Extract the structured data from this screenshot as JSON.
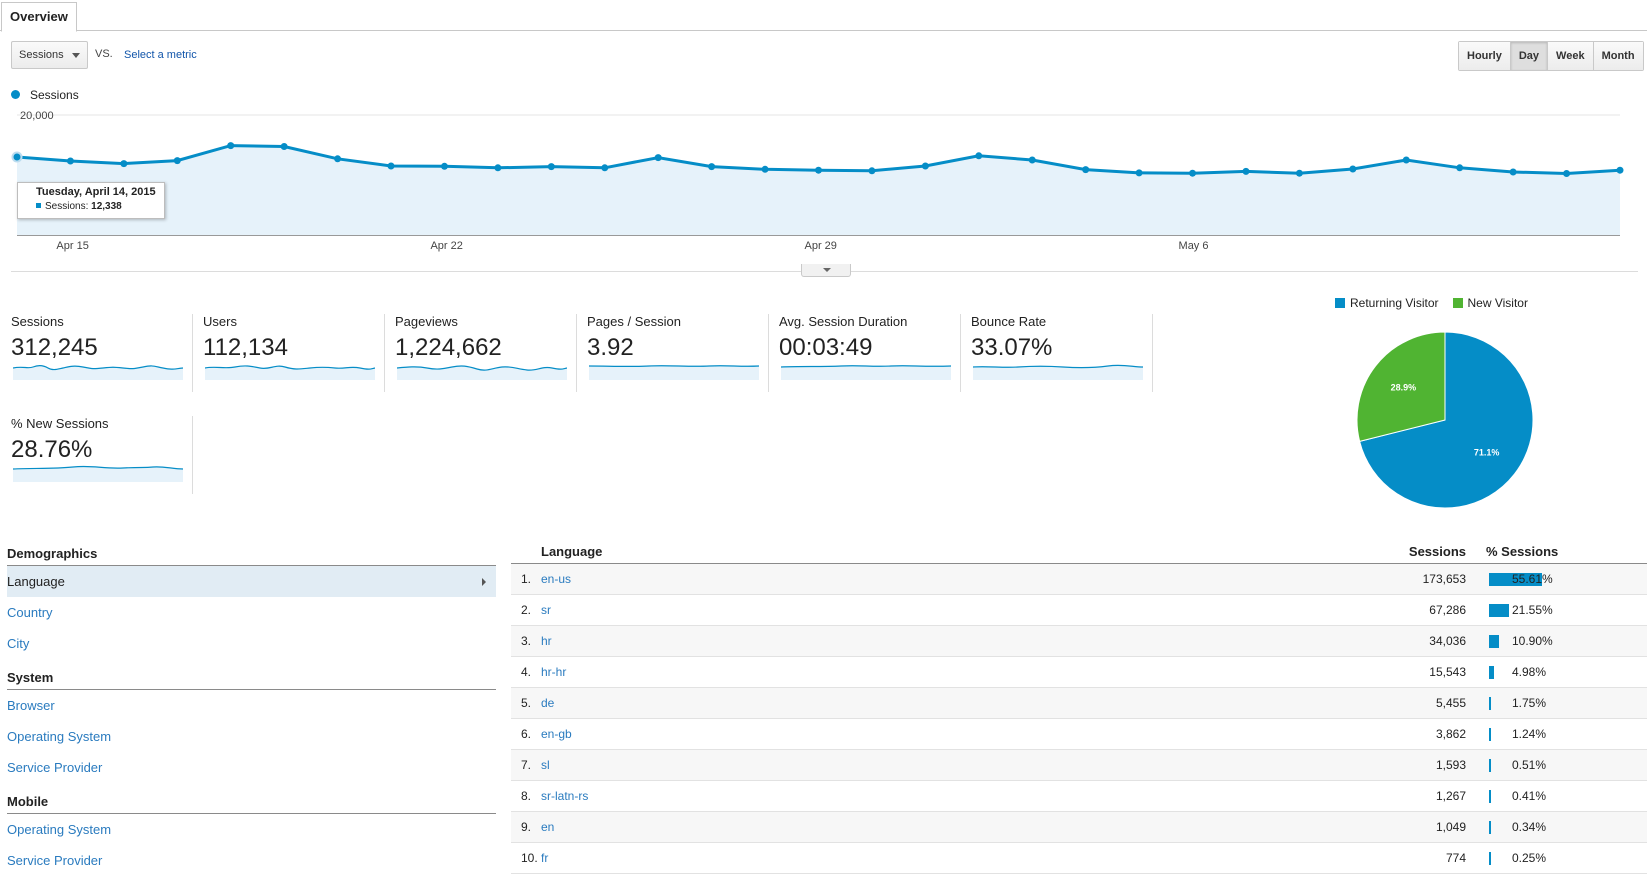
{
  "tab": {
    "label": "Overview"
  },
  "controls": {
    "metric": "Sessions",
    "vs": "VS.",
    "select_metric": "Select a metric",
    "time_buttons": [
      "Hourly",
      "Day",
      "Week",
      "Month"
    ],
    "active_time": "Day"
  },
  "colors": {
    "series": "#058dc7",
    "returning": "#058dc7",
    "new": "#50b432",
    "fill": "#e6f2fa"
  },
  "chart_data": {
    "type": "area",
    "series": [
      {
        "name": "Sessions",
        "values": [
          13000,
          12338,
          11900,
          12400,
          14900,
          14750,
          12700,
          11500,
          11450,
          11200,
          11400,
          11200,
          12900,
          11400,
          10950,
          10800,
          10700,
          11500,
          13200,
          12500,
          10900,
          10350,
          10300,
          10600,
          10300,
          11000,
          12500,
          11200,
          10500,
          10250,
          10800
        ]
      }
    ],
    "x_tick_labels": [
      "Apr 15",
      "Apr 22",
      "Apr 29",
      "May 6"
    ],
    "y_tick_labels": [
      "20,000"
    ],
    "ylim": [
      0,
      20000
    ],
    "legend": "Sessions"
  },
  "tooltip": {
    "title": "Tuesday, April 14, 2015",
    "label": "Sessions:",
    "value": "12,338"
  },
  "scorecards": [
    {
      "label": "Sessions",
      "value": "312,245"
    },
    {
      "label": "Users",
      "value": "112,134"
    },
    {
      "label": "Pageviews",
      "value": "1,224,662"
    },
    {
      "label": "Pages / Session",
      "value": "3.92"
    },
    {
      "label": "Avg. Session Duration",
      "value": "00:03:49"
    },
    {
      "label": "Bounce Rate",
      "value": "33.07%"
    },
    {
      "label": "% New Sessions",
      "value": "28.76%"
    }
  ],
  "pie": {
    "legend": [
      "Returning Visitor",
      "New Visitor"
    ],
    "slices": [
      {
        "name": "Returning Visitor",
        "value": 71.1,
        "label": "71.1%"
      },
      {
        "name": "New Visitor",
        "value": 28.9,
        "label": "28.9%"
      }
    ]
  },
  "demographics": {
    "sections": [
      {
        "title": "Demographics",
        "items": [
          "Language",
          "Country",
          "City"
        ]
      },
      {
        "title": "System",
        "items": [
          "Browser",
          "Operating System",
          "Service Provider"
        ]
      },
      {
        "title": "Mobile",
        "items": [
          "Operating System",
          "Service Provider"
        ]
      }
    ],
    "selected": "Language"
  },
  "language_table": {
    "headers": {
      "language": "Language",
      "sessions": "Sessions",
      "pct": "% Sessions"
    },
    "rows": [
      {
        "num": "1.",
        "lang": "en-us",
        "sessions": "173,653",
        "pct": "55.61%",
        "pct_value": 55.61
      },
      {
        "num": "2.",
        "lang": "sr",
        "sessions": "67,286",
        "pct": "21.55%",
        "pct_value": 21.55
      },
      {
        "num": "3.",
        "lang": "hr",
        "sessions": "34,036",
        "pct": "10.90%",
        "pct_value": 10.9
      },
      {
        "num": "4.",
        "lang": "hr-hr",
        "sessions": "15,543",
        "pct": "4.98%",
        "pct_value": 4.98
      },
      {
        "num": "5.",
        "lang": "de",
        "sessions": "5,455",
        "pct": "1.75%",
        "pct_value": 1.75
      },
      {
        "num": "6.",
        "lang": "en-gb",
        "sessions": "3,862",
        "pct": "1.24%",
        "pct_value": 1.24
      },
      {
        "num": "7.",
        "lang": "sl",
        "sessions": "1,593",
        "pct": "0.51%",
        "pct_value": 0.51
      },
      {
        "num": "8.",
        "lang": "sr-latn-rs",
        "sessions": "1,267",
        "pct": "0.41%",
        "pct_value": 0.41
      },
      {
        "num": "9.",
        "lang": "en",
        "sessions": "1,049",
        "pct": "0.34%",
        "pct_value": 0.34
      },
      {
        "num": "10.",
        "lang": "fr",
        "sessions": "774",
        "pct": "0.25%",
        "pct_value": 0.25
      }
    ]
  }
}
